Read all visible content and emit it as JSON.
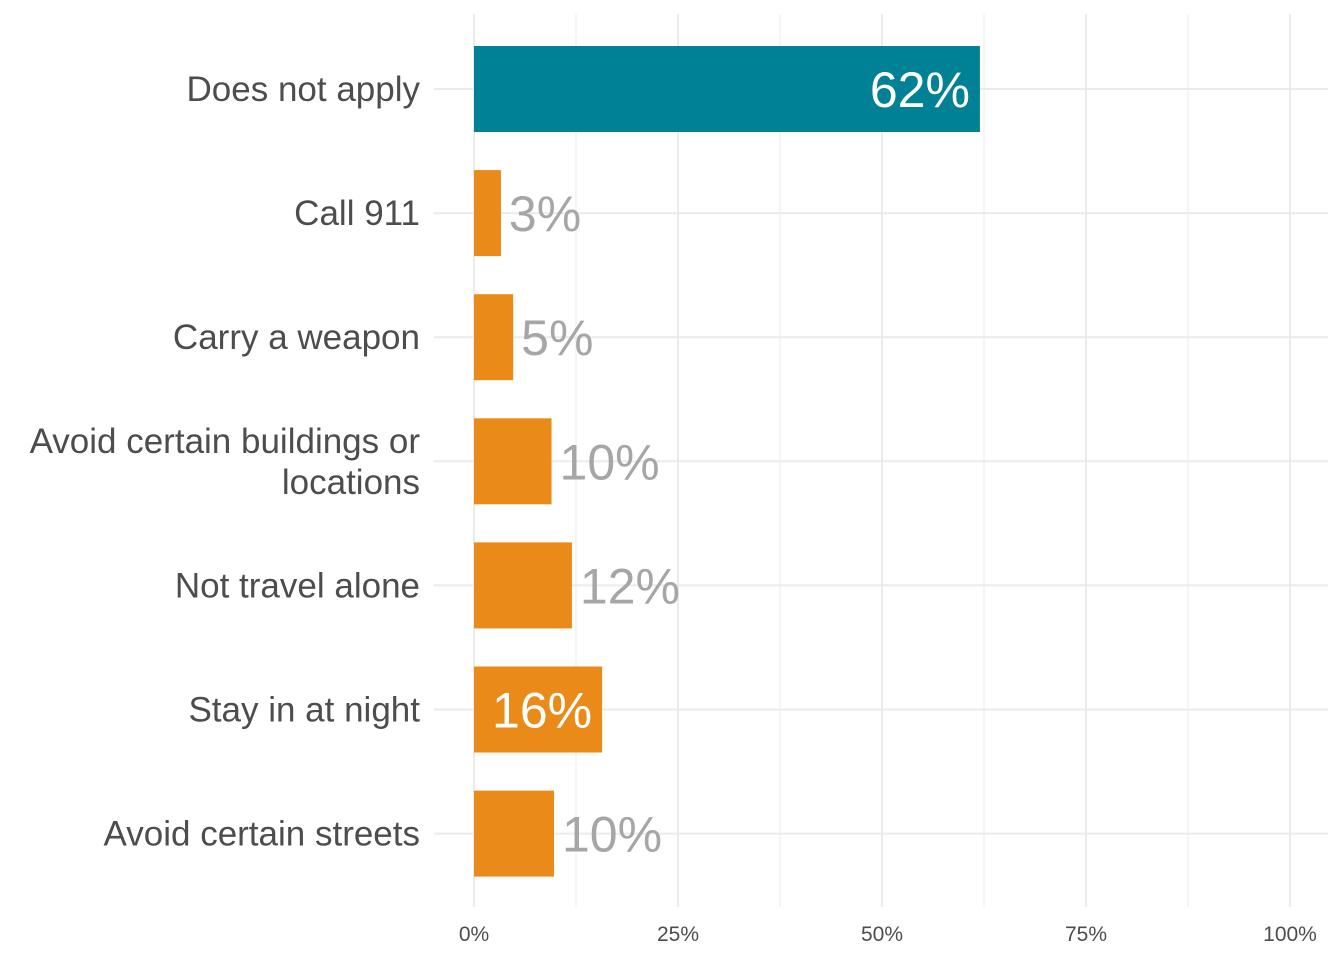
{
  "chart_data": {
    "type": "bar",
    "orientation": "horizontal",
    "title": "",
    "xlabel": "",
    "ylabel": "",
    "xlim": [
      0,
      100
    ],
    "grid": true,
    "x_ticks": [
      0,
      25,
      50,
      75,
      100
    ],
    "x_tick_labels": [
      "0%",
      "25%",
      "50%",
      "75%",
      "100%"
    ],
    "categories": [
      [
        "Does not apply"
      ],
      [
        "Call 911"
      ],
      [
        "Carry a weapon"
      ],
      [
        "Avoid certain buildings or",
        "locations"
      ],
      [
        "Not travel alone"
      ],
      [
        "Stay in at night"
      ],
      [
        "Avoid certain streets"
      ]
    ],
    "values": [
      62,
      3.3,
      4.8,
      9.5,
      12,
      15.7,
      9.8
    ],
    "data_labels": [
      "62%",
      "3%",
      "5%",
      "10%",
      "12%",
      "16%",
      "10%"
    ],
    "label_inside": [
      true,
      false,
      false,
      false,
      false,
      true,
      false
    ],
    "bar_colors": [
      "#008196",
      "#E98A19",
      "#E98A19",
      "#E98A19",
      "#E98A19",
      "#E98A19",
      "#E98A19"
    ],
    "colors": {
      "label_inside": "#ffffff",
      "label_outside": "#a6a6a6",
      "grid": "#ebebeb",
      "axis_text": "#4d4d4d"
    }
  }
}
